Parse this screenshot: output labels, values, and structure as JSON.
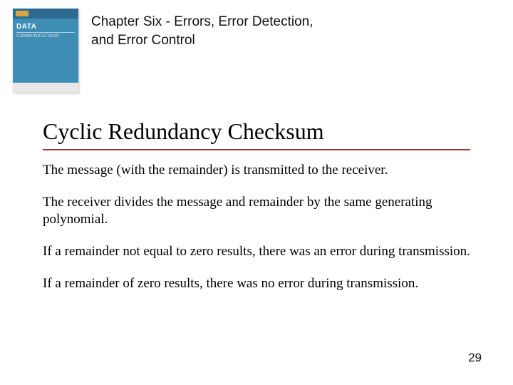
{
  "book": {
    "title_line1": "DATA",
    "title_line2": "COMMUNICATIONS"
  },
  "chapter_title": "Chapter Six - Errors, Error Detection, and Error Control",
  "heading": "Cyclic Redundancy Checksum",
  "heading_underline_color": "#9f3b2f",
  "paragraphs": [
    "The message (with the remainder) is transmitted to the receiver.",
    "The receiver divides the message and remainder by the same generating polynomial.",
    "If a remainder not equal to zero results, there was an error during transmission.",
    "If a remainder of zero results, there was no error during transmission."
  ],
  "page_number": "29",
  "colors": {
    "background": "#ffffff",
    "text": "#000000",
    "book_primary": "#3d8db5",
    "book_dark": "#2a6b8f",
    "book_badge": "#d9a441",
    "book_bottom": "#e8e8e8"
  },
  "fonts": {
    "heading_family": "Times New Roman",
    "heading_size_pt": 24,
    "chapter_family": "Gill Sans",
    "chapter_size_pt": 14,
    "body_family": "Times New Roman",
    "body_size_pt": 14
  }
}
